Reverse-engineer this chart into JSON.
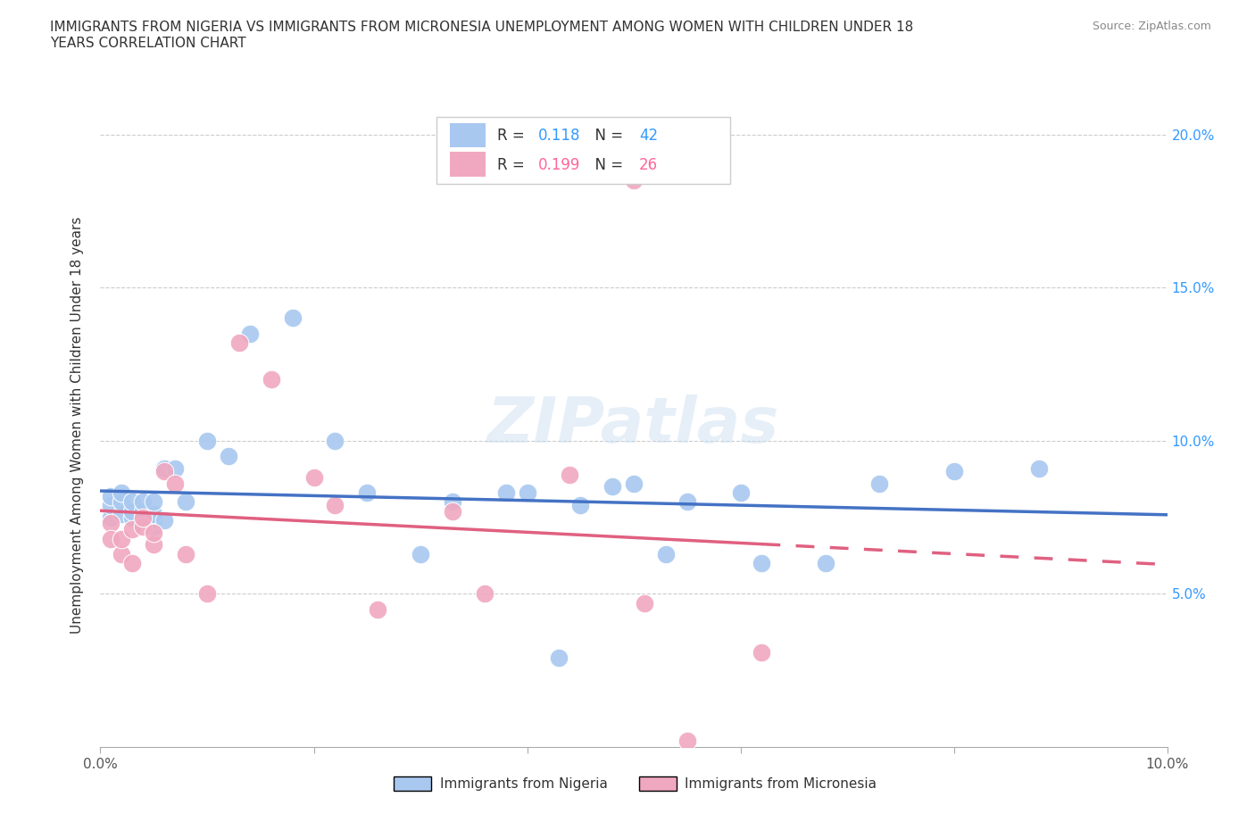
{
  "title_line1": "IMMIGRANTS FROM NIGERIA VS IMMIGRANTS FROM MICRONESIA UNEMPLOYMENT AMONG WOMEN WITH CHILDREN UNDER 18",
  "title_line2": "YEARS CORRELATION CHART",
  "source": "Source: ZipAtlas.com",
  "ylabel": "Unemployment Among Women with Children Under 18 years",
  "xlim": [
    0.0,
    0.1
  ],
  "ylim": [
    0.0,
    0.21
  ],
  "nigeria_color": "#a8c8f0",
  "micronesia_color": "#f0a8c0",
  "nigeria_line_color": "#4472c4",
  "micronesia_line_color": "#e06080",
  "nigeria_R": 0.118,
  "nigeria_N": 42,
  "micronesia_R": 0.199,
  "micronesia_N": 26,
  "nigeria_x": [
    0.001,
    0.001,
    0.001,
    0.002,
    0.002,
    0.002,
    0.003,
    0.003,
    0.003,
    0.004,
    0.004,
    0.004,
    0.005,
    0.005,
    0.005,
    0.005,
    0.006,
    0.006,
    0.007,
    0.008,
    0.01,
    0.012,
    0.014,
    0.018,
    0.022,
    0.025,
    0.03,
    0.033,
    0.038,
    0.04,
    0.043,
    0.045,
    0.048,
    0.05,
    0.053,
    0.055,
    0.06,
    0.062,
    0.068,
    0.073,
    0.08,
    0.088
  ],
  "nigeria_y": [
    0.075,
    0.079,
    0.082,
    0.076,
    0.08,
    0.083,
    0.075,
    0.077,
    0.08,
    0.074,
    0.077,
    0.08,
    0.072,
    0.074,
    0.076,
    0.08,
    0.074,
    0.091,
    0.091,
    0.08,
    0.1,
    0.095,
    0.135,
    0.14,
    0.1,
    0.083,
    0.063,
    0.08,
    0.083,
    0.083,
    0.029,
    0.079,
    0.085,
    0.086,
    0.063,
    0.08,
    0.083,
    0.06,
    0.06,
    0.086,
    0.09,
    0.091
  ],
  "micronesia_x": [
    0.001,
    0.001,
    0.002,
    0.002,
    0.003,
    0.003,
    0.004,
    0.004,
    0.005,
    0.005,
    0.006,
    0.007,
    0.008,
    0.01,
    0.013,
    0.016,
    0.02,
    0.022,
    0.026,
    0.033,
    0.036,
    0.044,
    0.05,
    0.051,
    0.055,
    0.062
  ],
  "micronesia_y": [
    0.073,
    0.068,
    0.063,
    0.068,
    0.071,
    0.06,
    0.072,
    0.075,
    0.066,
    0.07,
    0.09,
    0.086,
    0.063,
    0.05,
    0.132,
    0.12,
    0.088,
    0.079,
    0.045,
    0.077,
    0.05,
    0.089,
    0.185,
    0.047,
    0.002,
    0.031
  ]
}
